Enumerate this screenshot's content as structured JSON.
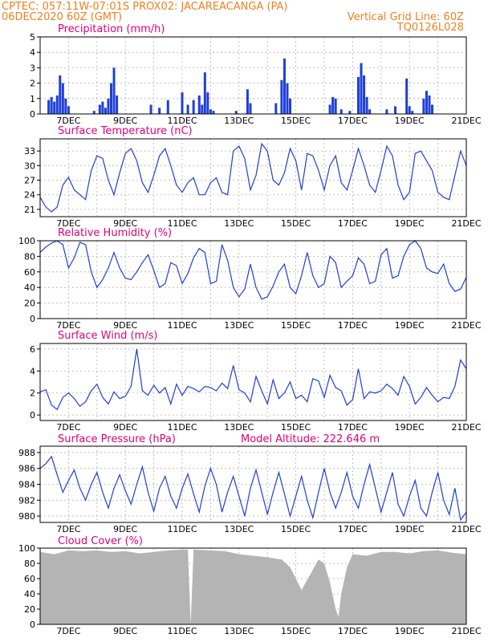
{
  "header": {
    "line1_left": "CPTEC:   057:11W-07:01S   PROX02: JACAREACANGA (PA)",
    "line2_left": "06DEC2020 60Z (GMT)",
    "line2_right": "Vertical Grid Line: 60Z",
    "line3_right": "TQ0126L028"
  },
  "colors": {
    "header": "#f07f1e",
    "panel_title": "#e0007a",
    "line": "#1f3fd6",
    "cloud": "#b4b4b4",
    "grid": "#b0b0b0"
  },
  "date_labels": [
    "7DEC",
    "9DEC",
    "11DEC",
    "13DEC",
    "15DEC",
    "17DEC",
    "19DEC",
    "21DEC"
  ],
  "chart_data": [
    {
      "type": "bar",
      "title": "Precipitation (mm/h)",
      "ylim": [
        0,
        5
      ],
      "yticks": [
        0,
        1,
        2,
        3,
        4,
        5
      ],
      "x_range_days": [
        6.0,
        21.0
      ],
      "x": [
        6.3,
        6.4,
        6.5,
        6.6,
        6.7,
        6.8,
        6.9,
        7.0,
        7.9,
        8.1,
        8.2,
        8.3,
        8.4,
        8.5,
        8.6,
        8.7,
        9.9,
        10.2,
        10.5,
        11.0,
        11.2,
        11.4,
        11.6,
        11.7,
        11.8,
        11.9,
        12.0,
        12.1,
        12.9,
        13.3,
        13.4,
        14.3,
        14.5,
        14.6,
        14.7,
        14.8,
        16.2,
        16.3,
        16.4,
        16.6,
        16.9,
        17.2,
        17.3,
        17.4,
        17.5,
        17.6,
        18.2,
        18.5,
        18.9,
        19.0,
        19.1,
        19.5,
        19.6,
        19.7,
        19.8
      ],
      "values": [
        0.9,
        1.1,
        0.8,
        1.2,
        2.5,
        2.0,
        1.0,
        0.5,
        0.2,
        0.6,
        0.8,
        0.4,
        1.0,
        2.0,
        3.0,
        1.2,
        0.6,
        0.4,
        0.9,
        1.4,
        0.6,
        0.9,
        1.2,
        0.6,
        2.7,
        1.4,
        0.3,
        0.2,
        0.2,
        1.6,
        0.7,
        0.7,
        2.2,
        3.6,
        2.0,
        1.0,
        0.6,
        1.1,
        1.0,
        0.3,
        0.2,
        2.4,
        3.3,
        2.5,
        1.1,
        0.3,
        0.3,
        0.5,
        2.3,
        0.5,
        0.2,
        1.0,
        1.5,
        1.2,
        0.6
      ]
    },
    {
      "type": "line",
      "title": "Surface Temperature (nC)",
      "ylim": [
        19.5,
        35.5
      ],
      "yticks": [
        21,
        24,
        27,
        30,
        33
      ],
      "x_range_days": [
        6.0,
        21.0
      ],
      "x": [
        6.0,
        6.2,
        6.4,
        6.6,
        6.8,
        7.0,
        7.2,
        7.4,
        7.6,
        7.8,
        8.0,
        8.2,
        8.4,
        8.6,
        8.8,
        9.0,
        9.2,
        9.4,
        9.6,
        9.8,
        10.0,
        10.2,
        10.4,
        10.6,
        10.8,
        11.0,
        11.2,
        11.4,
        11.6,
        11.8,
        12.0,
        12.2,
        12.4,
        12.6,
        12.8,
        13.0,
        13.2,
        13.4,
        13.6,
        13.8,
        14.0,
        14.2,
        14.4,
        14.6,
        14.8,
        15.0,
        15.2,
        15.4,
        15.6,
        15.8,
        16.0,
        16.2,
        16.4,
        16.6,
        16.8,
        17.0,
        17.2,
        17.4,
        17.6,
        17.8,
        18.0,
        18.2,
        18.4,
        18.6,
        18.8,
        19.0,
        19.2,
        19.4,
        19.6,
        19.8,
        20.0,
        20.2,
        20.4,
        20.6,
        20.8,
        21.0
      ],
      "values": [
        23.5,
        21.5,
        20.5,
        21.5,
        26.0,
        27.6,
        25.0,
        24.0,
        23.0,
        29.0,
        32.0,
        31.5,
        27.0,
        24.0,
        28.5,
        32.5,
        33.5,
        31.0,
        26.5,
        24.5,
        28.0,
        32.0,
        33.5,
        30.0,
        26.0,
        24.5,
        26.5,
        27.5,
        24.0,
        24.0,
        26.5,
        27.5,
        24.5,
        24.0,
        33.0,
        34.0,
        31.5,
        25.0,
        28.0,
        34.5,
        33.0,
        27.0,
        26.0,
        28.5,
        33.5,
        31.0,
        25.0,
        32.5,
        32.0,
        29.0,
        25.0,
        30.0,
        32.0,
        26.5,
        25.0,
        29.0,
        33.5,
        30.0,
        26.0,
        24.5,
        29.0,
        34.0,
        32.0,
        26.0,
        23.0,
        24.5,
        32.5,
        33.0,
        31.0,
        29.0,
        24.5,
        23.5,
        23.0,
        28.0,
        33.0,
        30.0
      ]
    },
    {
      "type": "line",
      "title": "Relative Humidity (%)",
      "ylim": [
        0,
        100
      ],
      "yticks": [
        0,
        20,
        40,
        60,
        80,
        100
      ],
      "x_range_days": [
        6.0,
        21.0
      ],
      "x": [
        6.0,
        6.2,
        6.4,
        6.6,
        6.8,
        7.0,
        7.2,
        7.4,
        7.6,
        7.8,
        8.0,
        8.2,
        8.4,
        8.6,
        8.8,
        9.0,
        9.2,
        9.4,
        9.6,
        9.8,
        10.0,
        10.2,
        10.4,
        10.6,
        10.8,
        11.0,
        11.2,
        11.4,
        11.6,
        11.8,
        12.0,
        12.2,
        12.4,
        12.6,
        12.8,
        13.0,
        13.2,
        13.4,
        13.6,
        13.8,
        14.0,
        14.2,
        14.4,
        14.6,
        14.8,
        15.0,
        15.2,
        15.4,
        15.6,
        15.8,
        16.0,
        16.2,
        16.4,
        16.6,
        16.8,
        17.0,
        17.2,
        17.4,
        17.6,
        17.8,
        18.0,
        18.2,
        18.4,
        18.6,
        18.8,
        19.0,
        19.2,
        19.4,
        19.6,
        19.8,
        20.0,
        20.2,
        20.4,
        20.6,
        20.8,
        21.0
      ],
      "values": [
        85,
        92,
        97,
        100,
        95,
        65,
        78,
        98,
        95,
        60,
        40,
        50,
        65,
        85,
        65,
        52,
        50,
        60,
        72,
        82,
        62,
        40,
        45,
        72,
        68,
        45,
        58,
        78,
        90,
        85,
        45,
        48,
        95,
        75,
        40,
        28,
        38,
        70,
        40,
        25,
        28,
        42,
        60,
        70,
        40,
        32,
        55,
        85,
        55,
        40,
        45,
        80,
        72,
        40,
        48,
        55,
        78,
        70,
        45,
        48,
        82,
        90,
        52,
        55,
        80,
        95,
        100,
        90,
        65,
        60,
        58,
        70,
        45,
        35,
        38,
        53
      ]
    },
    {
      "type": "line",
      "title": "Surface Wind (m/s)",
      "ylim": [
        -0.5,
        6.5
      ],
      "yticks": [
        0,
        2,
        4,
        6
      ],
      "x_range_days": [
        6.0,
        21.0
      ],
      "x": [
        6.0,
        6.2,
        6.4,
        6.6,
        6.8,
        7.0,
        7.2,
        7.4,
        7.6,
        7.8,
        8.0,
        8.2,
        8.4,
        8.6,
        8.8,
        9.0,
        9.2,
        9.4,
        9.6,
        9.8,
        10.0,
        10.2,
        10.4,
        10.6,
        10.8,
        11.0,
        11.2,
        11.4,
        11.6,
        11.8,
        12.0,
        12.2,
        12.4,
        12.6,
        12.8,
        13.0,
        13.2,
        13.4,
        13.6,
        13.8,
        14.0,
        14.2,
        14.4,
        14.6,
        14.8,
        15.0,
        15.2,
        15.4,
        15.6,
        15.8,
        16.0,
        16.2,
        16.4,
        16.6,
        16.8,
        17.0,
        17.2,
        17.4,
        17.6,
        17.8,
        18.0,
        18.2,
        18.4,
        18.6,
        18.8,
        19.0,
        19.2,
        19.4,
        19.6,
        19.8,
        20.0,
        20.2,
        20.4,
        20.6,
        20.8,
        21.0
      ],
      "values": [
        2.1,
        2.3,
        0.9,
        0.5,
        1.6,
        2.0,
        1.5,
        0.8,
        1.2,
        2.2,
        2.8,
        1.6,
        1.0,
        2.1,
        1.5,
        1.7,
        2.6,
        6.0,
        2.2,
        1.8,
        2.7,
        2.0,
        2.5,
        1.0,
        2.8,
        1.8,
        2.6,
        2.4,
        2.1,
        2.6,
        2.5,
        2.2,
        2.9,
        2.4,
        4.5,
        2.3,
        2.0,
        1.2,
        3.5,
        2.2,
        1.0,
        3.2,
        1.5,
        2.0,
        3.0,
        1.5,
        1.8,
        1.2,
        3.3,
        3.1,
        1.6,
        3.6,
        2.5,
        2.2,
        0.9,
        1.4,
        4.2,
        1.5,
        2.1,
        2.0,
        2.2,
        2.8,
        2.4,
        1.8,
        3.5,
        2.6,
        1.0,
        1.6,
        2.5,
        1.8,
        1.2,
        1.6,
        1.5,
        2.6,
        5.0,
        4.2
      ]
    },
    {
      "type": "line",
      "title": "Surface Pressure (hPa)",
      "subtitle": "Model Altitude: 222.646 m",
      "ylim": [
        979.2,
        988.8
      ],
      "yticks": [
        980,
        982,
        984,
        986,
        988
      ],
      "x_range_days": [
        6.0,
        21.0
      ],
      "x": [
        6.0,
        6.2,
        6.4,
        6.6,
        6.8,
        7.0,
        7.2,
        7.4,
        7.6,
        7.8,
        8.0,
        8.2,
        8.4,
        8.6,
        8.8,
        9.0,
        9.2,
        9.4,
        9.6,
        9.8,
        10.0,
        10.2,
        10.4,
        10.6,
        10.8,
        11.0,
        11.2,
        11.4,
        11.6,
        11.8,
        12.0,
        12.2,
        12.4,
        12.6,
        12.8,
        13.0,
        13.2,
        13.4,
        13.6,
        13.8,
        14.0,
        14.2,
        14.4,
        14.6,
        14.8,
        15.0,
        15.2,
        15.4,
        15.6,
        15.8,
        16.0,
        16.2,
        16.4,
        16.6,
        16.8,
        17.0,
        17.2,
        17.4,
        17.6,
        17.8,
        18.0,
        18.2,
        18.4,
        18.6,
        18.8,
        19.0,
        19.2,
        19.4,
        19.6,
        19.8,
        20.0,
        20.2,
        20.4,
        20.6,
        20.8,
        21.0
      ],
      "values": [
        986.0,
        986.6,
        987.5,
        985.2,
        983.0,
        984.5,
        985.8,
        983.5,
        982.0,
        984.0,
        985.5,
        983.0,
        981.0,
        983.5,
        985.2,
        983.2,
        981.5,
        984.0,
        986.2,
        983.0,
        980.6,
        983.5,
        985.0,
        982.5,
        981.0,
        983.5,
        985.3,
        982.8,
        980.5,
        983.8,
        986.0,
        984.0,
        980.5,
        983.0,
        985.0,
        982.5,
        980.0,
        983.5,
        985.8,
        983.0,
        980.2,
        983.0,
        985.5,
        982.8,
        980.0,
        982.5,
        985.0,
        982.0,
        979.8,
        983.0,
        986.0,
        983.0,
        981.0,
        983.0,
        985.5,
        982.5,
        981.0,
        984.0,
        986.5,
        983.5,
        980.5,
        983.0,
        985.5,
        981.5,
        980.0,
        982.5,
        984.5,
        981.0,
        980.0,
        983.0,
        985.5,
        982.0,
        980.2,
        983.5,
        979.5,
        980.5
      ]
    },
    {
      "type": "area",
      "title": "Cloud Cover (%)",
      "ylim": [
        0,
        100
      ],
      "yticks": [
        0,
        20,
        40,
        60,
        80,
        100
      ],
      "x_range_days": [
        6.0,
        21.0
      ],
      "x": [
        6.0,
        6.5,
        7.0,
        7.5,
        8.0,
        8.5,
        9.0,
        9.5,
        10.0,
        10.5,
        11.0,
        11.2,
        11.3,
        11.4,
        11.5,
        12.0,
        12.5,
        13.0,
        13.5,
        14.0,
        14.5,
        14.8,
        15.0,
        15.2,
        15.5,
        15.8,
        16.0,
        16.2,
        16.4,
        16.5,
        16.6,
        16.8,
        17.0,
        17.5,
        18.0,
        18.5,
        19.0,
        19.5,
        20.0,
        20.5,
        21.0
      ],
      "values": [
        95,
        92,
        97,
        96,
        97,
        95,
        96,
        93,
        95,
        97,
        98,
        98,
        0,
        98,
        98,
        97,
        96,
        92,
        90,
        88,
        85,
        75,
        60,
        45,
        65,
        85,
        80,
        55,
        20,
        10,
        40,
        75,
        92,
        90,
        95,
        95,
        93,
        96,
        97,
        94,
        92
      ]
    }
  ]
}
